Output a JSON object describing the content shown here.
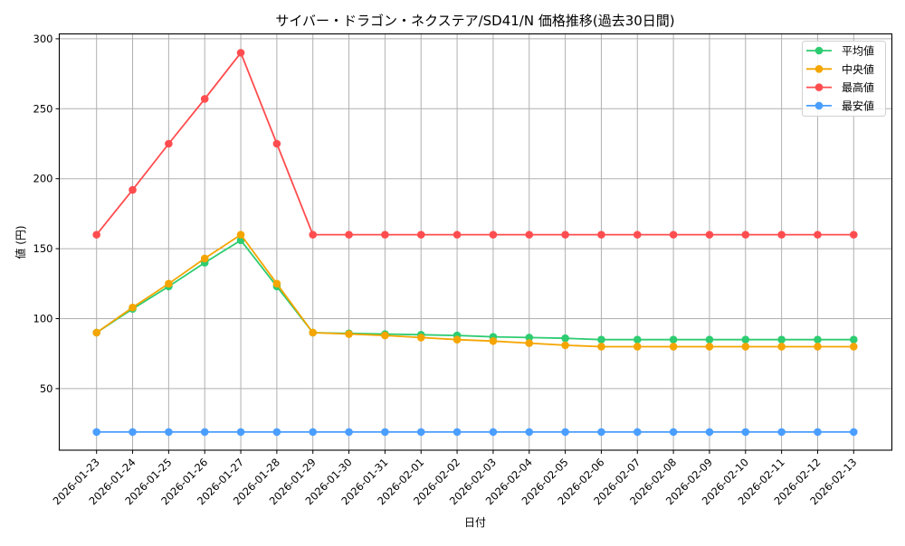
{
  "chart_data": {
    "type": "line",
    "title": "サイバー・ドラゴン・ネクステア/SD41/N 価格推移(過去30日間)",
    "xlabel": "日付",
    "ylabel": "値 (円)",
    "ylim": [
      5.5,
      304.5
    ],
    "yticks": [
      50,
      100,
      150,
      200,
      250,
      300
    ],
    "grid": true,
    "legend_position": "upper right",
    "categories": [
      "2026-01-23",
      "2026-01-24",
      "2026-01-25",
      "2026-01-26",
      "2026-01-27",
      "2026-01-28",
      "2026-01-29",
      "2026-01-30",
      "2026-01-31",
      "2026-02-01",
      "2026-02-02",
      "2026-02-03",
      "2026-02-04",
      "2026-02-05",
      "2026-02-06",
      "2026-02-07",
      "2026-02-08",
      "2026-02-09",
      "2026-02-10",
      "2026-02-11",
      "2026-02-12",
      "2026-02-13"
    ],
    "series": [
      {
        "name": "平均値",
        "color": "#2ecc71",
        "values": [
          90,
          107,
          123,
          140,
          156,
          123,
          90,
          89.5,
          89,
          88.5,
          88,
          87,
          86.5,
          86,
          85,
          85,
          85,
          85,
          85,
          85,
          85,
          85
        ]
      },
      {
        "name": "中央値",
        "color": "#f5a500",
        "values": [
          90,
          108,
          125,
          143,
          160,
          125,
          90,
          89,
          88,
          86.5,
          85,
          84,
          82.5,
          81,
          80,
          80,
          80,
          80,
          80,
          80,
          80,
          80
        ]
      },
      {
        "name": "最高値",
        "color": "#ff4d4f",
        "values": [
          160,
          192,
          225,
          257,
          290,
          225,
          160,
          160,
          160,
          160,
          160,
          160,
          160,
          160,
          160,
          160,
          160,
          160,
          160,
          160,
          160,
          160
        ]
      },
      {
        "name": "最安値",
        "color": "#4a9eff",
        "values": [
          19,
          19,
          19,
          19,
          19,
          19,
          19,
          19,
          19,
          19,
          19,
          19,
          19,
          19,
          19,
          19,
          19,
          19,
          19,
          19,
          19,
          19
        ]
      }
    ]
  }
}
